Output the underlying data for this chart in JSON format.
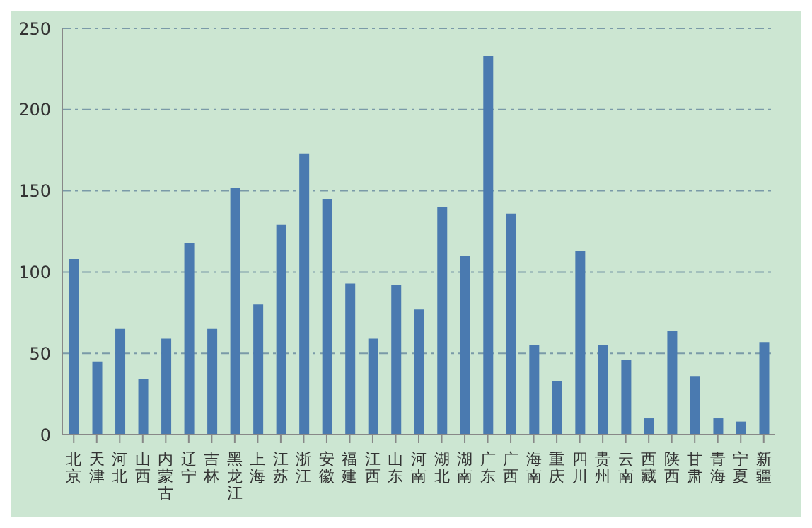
{
  "chart_data": {
    "type": "bar",
    "categories": [
      "北京",
      "天津",
      "河北",
      "山西",
      "内蒙古",
      "辽宁",
      "吉林",
      "黑龙江",
      "上海",
      "江苏",
      "浙江",
      "安徽",
      "福建",
      "江西",
      "山东",
      "河南",
      "湖北",
      "湖南",
      "广东",
      "广西",
      "海南",
      "重庆",
      "四川",
      "贵州",
      "云南",
      "西藏",
      "陕西",
      "甘肃",
      "青海",
      "宁夏",
      "新疆"
    ],
    "values": [
      108,
      45,
      65,
      34,
      59,
      118,
      65,
      152,
      80,
      129,
      173,
      145,
      93,
      59,
      92,
      77,
      140,
      110,
      233,
      136,
      55,
      33,
      113,
      55,
      46,
      10,
      64,
      36,
      10,
      8,
      57
    ],
    "color": "#4a7ab0",
    "ylim": [
      0,
      250
    ],
    "yticks": [
      0,
      50,
      100,
      150,
      200,
      250
    ],
    "grid": "y"
  }
}
